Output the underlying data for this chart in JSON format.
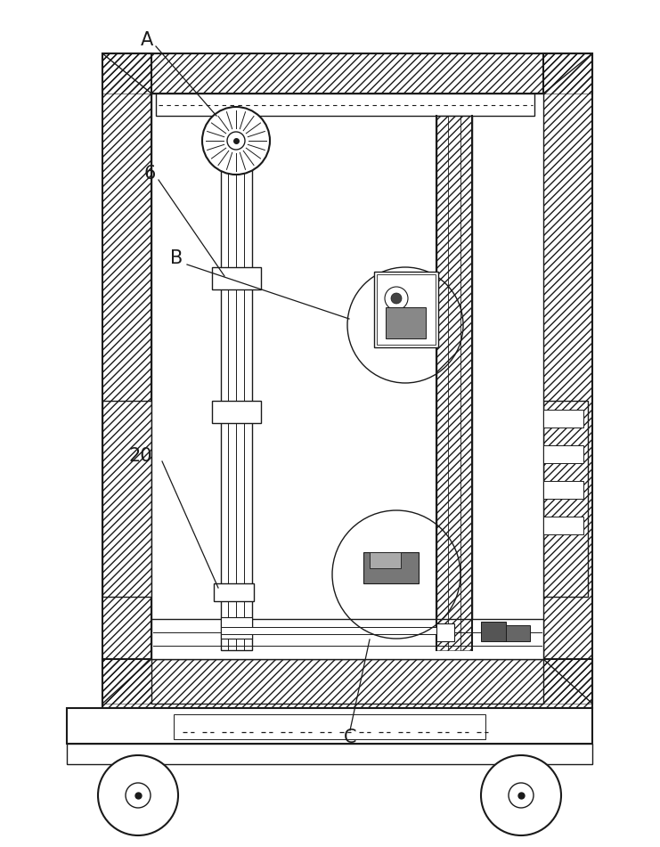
{
  "bg_color": "#ffffff",
  "line_color": "#1a1a1a",
  "label_A": "A",
  "label_6": "6",
  "label_B": "B",
  "label_20": "20",
  "label_C": "C",
  "fig_width": 7.41,
  "fig_height": 9.51,
  "dpi": 100
}
